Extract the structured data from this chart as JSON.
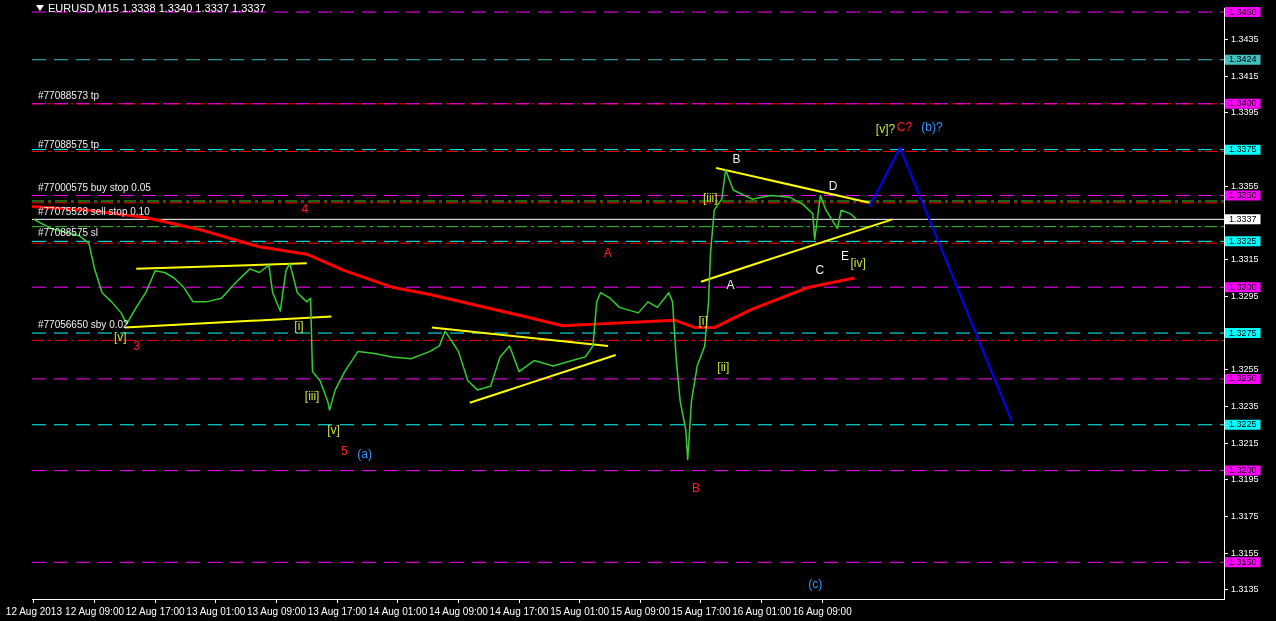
{
  "chart_data": {
    "type": "line",
    "title": "EURUSD,M15  1.3338 1.3340 1.3337 1.3337",
    "xlim": [
      "2013-08-12T00:45",
      "2013-08-18T14:00"
    ],
    "xticks": [
      {
        "value": "2013-08-12T01:00",
        "label": "12 Aug 2013"
      },
      {
        "value": "2013-08-12T09:00",
        "label": "12 Aug 09:00"
      },
      {
        "value": "2013-08-12T17:00",
        "label": "12 Aug 17:00"
      },
      {
        "value": "2013-08-13T01:00",
        "label": "13 Aug 01:00"
      },
      {
        "value": "2013-08-13T09:00",
        "label": "13 Aug 09:00"
      },
      {
        "value": "2013-08-13T17:00",
        "label": "13 Aug 17:00"
      },
      {
        "value": "2013-08-14T01:00",
        "label": "14 Aug 01:00"
      },
      {
        "value": "2013-08-14T09:00",
        "label": "14 Aug 09:00"
      },
      {
        "value": "2013-08-14T17:00",
        "label": "14 Aug 17:00"
      },
      {
        "value": "2013-08-15T01:00",
        "label": "15 Aug 01:00"
      },
      {
        "value": "2013-08-15T09:00",
        "label": "15 Aug 09:00"
      },
      {
        "value": "2013-08-15T17:00",
        "label": "15 Aug 17:00"
      },
      {
        "value": "2013-08-16T01:00",
        "label": "16 Aug 01:00"
      },
      {
        "value": "2013-08-16T09:00",
        "label": "16 Aug 09:00"
      }
    ],
    "ylim": [
      1.313,
      1.3452
    ],
    "yticks": [
      1.3135,
      1.3155,
      1.3175,
      1.3195,
      1.3215,
      1.3235,
      1.3255,
      {
        "value": 1.3275,
        "label": null
      },
      1.3295,
      1.3315,
      {
        "value": 1.3335,
        "label": null
      },
      1.3355,
      {
        "value": 1.3375,
        "label": null
      },
      1.3395,
      1.3415,
      1.3435
    ],
    "grid": false,
    "marker": "none",
    "line_style": "solid",
    "series": [
      {
        "color": "#33cc33",
        "x": [
          "2013-08-12T01:00",
          "2013-08-12T03:15",
          "2013-08-12T07:00",
          "2013-08-12T08:15",
          "2013-08-12T09:00",
          "2013-08-12T10:00",
          "2013-08-12T11:15",
          "2013-08-12T12:30",
          "2013-08-12T13:15",
          "2013-08-12T14:30",
          "2013-08-12T15:45",
          "2013-08-12T17:00",
          "2013-08-12T18:15",
          "2013-08-12T19:30",
          "2013-08-12T20:45",
          "2013-08-12T22:00",
          "2013-08-12T23:45",
          "2013-08-13T01:45",
          "2013-08-13T03:30",
          "2013-08-13T05:30",
          "2013-08-13T06:45",
          "2013-08-13T08:00",
          "2013-08-13T08:30",
          "2013-08-13T09:30",
          "2013-08-13T10:15",
          "2013-08-13T10:45",
          "2013-08-13T11:45",
          "2013-08-13T13:00",
          "2013-08-13T13:30",
          "2013-08-13T13:45",
          "2013-08-13T14:45",
          "2013-08-13T15:45",
          "2013-08-13T16:00",
          "2013-08-13T16:45",
          "2013-08-13T18:00",
          "2013-08-13T19:45",
          "2013-08-13T21:45",
          "2013-08-14T00:15",
          "2013-08-14T02:45",
          "2013-08-14T05:15",
          "2013-08-14T06:30",
          "2013-08-14T07:15",
          "2013-08-14T09:00",
          "2013-08-14T10:15",
          "2013-08-14T11:30",
          "2013-08-14T13:15",
          "2013-08-14T14:30",
          "2013-08-14T15:45",
          "2013-08-14T17:00",
          "2013-08-14T19:00",
          "2013-08-14T21:30",
          "2013-08-15T00:00",
          "2013-08-15T01:45",
          "2013-08-15T02:45",
          "2013-08-15T03:15",
          "2013-08-15T03:45",
          "2013-08-15T05:00",
          "2013-08-15T06:15",
          "2013-08-15T08:45",
          "2013-08-15T10:00",
          "2013-08-15T11:15",
          "2013-08-15T12:45",
          "2013-08-15T13:15",
          "2013-08-15T13:45",
          "2013-08-15T14:15",
          "2013-08-15T15:00",
          "2013-08-15T15:15",
          "2013-08-15T15:45",
          "2013-08-15T16:30",
          "2013-08-15T17:30",
          "2013-08-15T18:00",
          "2013-08-15T18:15",
          "2013-08-15T18:45",
          "2013-08-15T19:45",
          "2013-08-15T20:15",
          "2013-08-15T21:15",
          "2013-08-15T23:45",
          "2013-08-16T02:15",
          "2013-08-16T04:45",
          "2013-08-16T06:30",
          "2013-08-16T07:45",
          "2013-08-16T08:00",
          "2013-08-16T08:45",
          "2013-08-16T09:30",
          "2013-08-16T10:15",
          "2013-08-16T11:00",
          "2013-08-16T11:30",
          "2013-08-16T12:45",
          "2013-08-16T13:30"
        ],
        "values": [
          1.3337,
          1.3332,
          1.3328,
          1.3324,
          1.331,
          1.3297,
          1.3292,
          1.3286,
          1.328,
          1.3289,
          1.3297,
          1.3309,
          1.3308,
          1.3305,
          1.33,
          1.3292,
          1.3292,
          1.3294,
          1.3302,
          1.331,
          1.3308,
          1.3312,
          1.3297,
          1.3287,
          1.3309,
          1.3313,
          1.3297,
          1.3292,
          1.3294,
          1.3254,
          1.3249,
          1.3238,
          1.3233,
          1.3244,
          1.3254,
          1.3265,
          1.3264,
          1.3262,
          1.3261,
          1.3265,
          1.3268,
          1.3276,
          1.3265,
          1.3249,
          1.3244,
          1.3246,
          1.3262,
          1.3268,
          1.3254,
          1.326,
          1.3257,
          1.326,
          1.3262,
          1.3268,
          1.3292,
          1.3297,
          1.3294,
          1.3289,
          1.3286,
          1.3292,
          1.3289,
          1.3297,
          1.3292,
          1.326,
          1.3238,
          1.3222,
          1.3206,
          1.3238,
          1.3257,
          1.3268,
          1.3292,
          1.3318,
          1.3342,
          1.3348,
          1.3364,
          1.3353,
          1.3348,
          1.335,
          1.3349,
          1.3345,
          1.334,
          1.3326,
          1.335,
          1.3342,
          1.3337,
          1.3332,
          1.3342,
          1.334,
          1.3337
        ]
      },
      {
        "color": "#ff0000",
        "x": [
          "2013-08-12T00:45",
          "2013-08-12T08:15",
          "2013-08-12T15:45",
          "2013-08-12T23:15",
          "2013-08-13T06:45",
          "2013-08-13T13:00",
          "2013-08-13T18:00",
          "2013-08-14T00:15",
          "2013-08-14T05:15",
          "2013-08-14T11:30",
          "2013-08-14T17:45",
          "2013-08-14T22:45",
          "2013-08-15T03:45",
          "2013-08-15T08:45",
          "2013-08-15T13:30",
          "2013-08-15T16:15",
          "2013-08-15T18:45",
          "2013-08-15T23:45",
          "2013-08-16T07:15",
          "2013-08-16T13:15"
        ],
        "values": [
          1.3344,
          1.3342,
          1.3338,
          1.3331,
          1.3322,
          1.3318,
          1.3309,
          1.33,
          1.3296,
          1.329,
          1.3284,
          1.3279,
          1.328,
          1.3281,
          1.3282,
          1.3278,
          1.3278,
          1.3288,
          1.33,
          1.3305
        ]
      },
      {
        "color": "#ffff00",
        "x": [
          "2013-08-12T14:30",
          "2013-08-13T13:00"
        ],
        "values": [
          1.331,
          1.3313
        ]
      },
      {
        "color": "#ffff00",
        "x": [
          "2013-08-12T13:00",
          "2013-08-13T16:15"
        ],
        "values": [
          1.3278,
          1.3284
        ]
      },
      {
        "color": "#ffff00",
        "x": [
          "2013-08-14T05:30",
          "2013-08-15T04:45"
        ],
        "values": [
          1.3278,
          1.3268
        ]
      },
      {
        "color": "#ffff00",
        "x": [
          "2013-08-14T10:30",
          "2013-08-15T05:45"
        ],
        "values": [
          1.3237,
          1.3263
        ]
      },
      {
        "color": "#ffff00",
        "x": [
          "2013-08-15T19:00",
          "2013-08-16T15:15"
        ],
        "values": [
          1.3365,
          1.3346
        ]
      },
      {
        "color": "#ffff00",
        "x": [
          "2013-08-15T17:00",
          "2013-08-16T18:15"
        ],
        "values": [
          1.3303,
          1.3337
        ]
      },
      {
        "color": "#0000ff",
        "x": [
          "2013-08-16T15:15",
          "2013-08-16T19:15",
          "2013-08-17T10:00"
        ],
        "values": [
          1.3344,
          1.3376,
          1.3227
        ]
      }
    ],
    "ref_lines": [
      {
        "axis": "y",
        "value": 1.345,
        "label": "1.3450",
        "color": "#ff00ff",
        "line_style": "dashed"
      },
      {
        "axis": "y",
        "value": 1.3424,
        "label": "1.3424",
        "color": "#40c0c0",
        "line_style": "dashed"
      },
      {
        "axis": "y",
        "value": 1.34,
        "color": "#ff0000",
        "line_style": "dotted"
      },
      {
        "axis": "y",
        "value": 1.34,
        "label": "1.3400",
        "color": "#ff00ff",
        "line_style": "dashed"
      },
      {
        "axis": "y",
        "value": 1.3374,
        "color": "#ff0000",
        "line_style": "dotted"
      },
      {
        "axis": "y",
        "value": 1.3375,
        "label": "1.3375",
        "color": "#00ffff",
        "line_style": "dashed"
      },
      {
        "axis": "y",
        "value": 1.335,
        "label": "1.3350",
        "color": "#ff00ff",
        "line_style": "dashed"
      },
      {
        "axis": "y",
        "value": 1.3347,
        "color": "#33cc33",
        "line_style": "dotted"
      },
      {
        "axis": "y",
        "value": 1.3346,
        "color": "#ff0000",
        "line_style": "dotted"
      },
      {
        "axis": "y",
        "value": 1.3337,
        "label": "1.3337",
        "color": "#ffffff",
        "line_style": "solid"
      },
      {
        "axis": "y",
        "value": 1.3333,
        "color": "#33cc33",
        "line_style": "dotted"
      },
      {
        "axis": "y",
        "value": 1.3324,
        "color": "#ff0000",
        "line_style": "dotted"
      },
      {
        "axis": "y",
        "value": 1.3325,
        "label": "1.3325",
        "color": "#00ffff",
        "line_style": "dashed"
      },
      {
        "axis": "y",
        "value": 1.33,
        "label": "1.3300",
        "color": "#ff00ff",
        "line_style": "dashed"
      },
      {
        "axis": "y",
        "value": 1.3275,
        "label": "1.3275",
        "color": "#00ffff",
        "line_style": "dashed"
      },
      {
        "axis": "y",
        "value": 1.3271,
        "color": "#ff0000",
        "line_style": "dotted"
      },
      {
        "axis": "y",
        "value": 1.325,
        "label": "1.3250",
        "color": "#ff00ff",
        "line_style": "dashed"
      },
      {
        "axis": "y",
        "value": 1.3225,
        "label": "1.3225",
        "color": "#00ffff",
        "line_style": "dashed"
      },
      {
        "axis": "y",
        "value": 1.32,
        "label": "1.3200",
        "color": "#ff00ff",
        "line_style": "dashed"
      },
      {
        "axis": "y",
        "value": 1.315,
        "label": "1.3150",
        "color": "#ff00ff",
        "line_style": "dashed"
      }
    ],
    "annotations": [
      "#77088573 tp",
      "#77088575 tp",
      "#77000575 buy stop 0.05",
      "#77075528 sell stop 0.10",
      "#77088575 sl",
      "#77056650 sby 0.02",
      "4",
      "3",
      "[v]",
      "[i]",
      "[iii]",
      "[v]",
      "5",
      "(a)",
      "A",
      "B",
      "[i]",
      "[ii]",
      "[iii]",
      "B",
      "A",
      "D",
      "C",
      "E",
      "[iv]",
      "[v]?",
      "C?",
      "(b)?",
      "(c)"
    ]
  }
}
